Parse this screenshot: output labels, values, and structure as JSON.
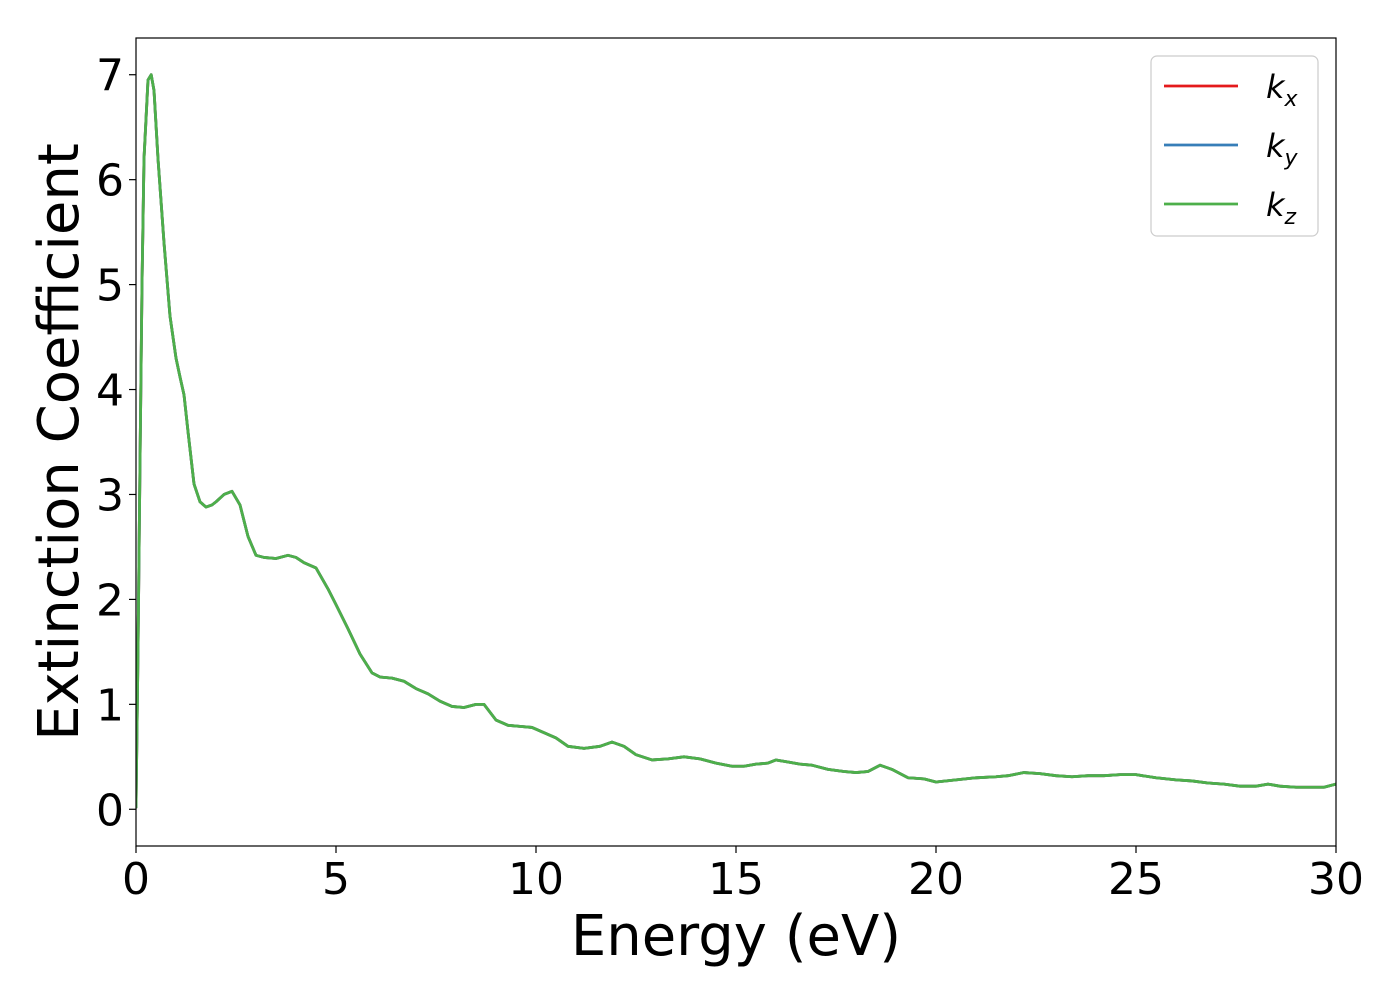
{
  "chart_data": {
    "type": "line",
    "xlabel": "Energy (eV)",
    "ylabel": "Extinction Coefficient",
    "xlim": [
      0,
      30
    ],
    "ylim": [
      -0.35,
      7.35
    ],
    "xticks": [
      0,
      5,
      10,
      15,
      20,
      25,
      30
    ],
    "yticks": [
      0,
      1,
      2,
      3,
      4,
      5,
      6,
      7
    ],
    "grid": false,
    "legend_position": "top-right",
    "series": [
      {
        "name": "k_x",
        "label_base": "k",
        "label_sub": "x",
        "color": "#e41a1c",
        "x": [
          0,
          0.05,
          0.1,
          0.15,
          0.2,
          0.3,
          0.38,
          0.45,
          0.55,
          0.7,
          0.85,
          1.0,
          1.1,
          1.2,
          1.3,
          1.45,
          1.6,
          1.75,
          1.9,
          2.0,
          2.2,
          2.4,
          2.6,
          2.8,
          3.0,
          3.2,
          3.5,
          3.8,
          4.0,
          4.2,
          4.5,
          4.8,
          5.0,
          5.3,
          5.6,
          5.9,
          6.1,
          6.4,
          6.7,
          7.0,
          7.3,
          7.6,
          7.9,
          8.2,
          8.5,
          8.7,
          9.0,
          9.3,
          9.6,
          9.9,
          10.2,
          10.5,
          10.8,
          11.2,
          11.6,
          11.9,
          12.2,
          12.5,
          12.9,
          13.3,
          13.7,
          14.1,
          14.5,
          14.9,
          15.2,
          15.5,
          15.8,
          16.0,
          16.3,
          16.6,
          16.9,
          17.3,
          17.7,
          18.0,
          18.3,
          18.6,
          18.9,
          19.3,
          19.7,
          20.0,
          20.5,
          21.0,
          21.5,
          21.8,
          22.2,
          22.6,
          23.0,
          23.4,
          23.8,
          24.2,
          24.6,
          25.0,
          25.5,
          26.0,
          26.4,
          26.8,
          27.2,
          27.6,
          28.0,
          28.3,
          28.6,
          29.0,
          29.4,
          29.7,
          30.0
        ],
        "y": [
          0.02,
          1.5,
          3.3,
          5.0,
          6.2,
          6.95,
          7.0,
          6.85,
          6.2,
          5.4,
          4.7,
          4.3,
          4.12,
          3.95,
          3.6,
          3.1,
          2.93,
          2.88,
          2.9,
          2.93,
          3.0,
          3.03,
          2.9,
          2.6,
          2.42,
          2.4,
          2.39,
          2.42,
          2.4,
          2.35,
          2.3,
          2.1,
          1.95,
          1.72,
          1.48,
          1.3,
          1.26,
          1.25,
          1.22,
          1.15,
          1.1,
          1.03,
          0.98,
          0.97,
          1.0,
          1.0,
          0.85,
          0.8,
          0.79,
          0.78,
          0.73,
          0.68,
          0.6,
          0.58,
          0.6,
          0.64,
          0.6,
          0.52,
          0.47,
          0.48,
          0.5,
          0.48,
          0.44,
          0.41,
          0.41,
          0.43,
          0.44,
          0.47,
          0.45,
          0.43,
          0.42,
          0.38,
          0.36,
          0.35,
          0.36,
          0.42,
          0.38,
          0.3,
          0.29,
          0.26,
          0.28,
          0.3,
          0.31,
          0.32,
          0.35,
          0.34,
          0.32,
          0.31,
          0.32,
          0.32,
          0.33,
          0.33,
          0.3,
          0.28,
          0.27,
          0.25,
          0.24,
          0.22,
          0.22,
          0.24,
          0.22,
          0.21,
          0.21,
          0.21,
          0.24
        ]
      },
      {
        "name": "k_y",
        "label_base": "k",
        "label_sub": "y",
        "color": "#377eb8",
        "x": [
          0,
          0.05,
          0.1,
          0.15,
          0.2,
          0.3,
          0.38,
          0.45,
          0.55,
          0.7,
          0.85,
          1.0,
          1.1,
          1.2,
          1.3,
          1.45,
          1.6,
          1.75,
          1.9,
          2.0,
          2.2,
          2.4,
          2.6,
          2.8,
          3.0,
          3.2,
          3.5,
          3.8,
          4.0,
          4.2,
          4.5,
          4.8,
          5.0,
          5.3,
          5.6,
          5.9,
          6.1,
          6.4,
          6.7,
          7.0,
          7.3,
          7.6,
          7.9,
          8.2,
          8.5,
          8.7,
          9.0,
          9.3,
          9.6,
          9.9,
          10.2,
          10.5,
          10.8,
          11.2,
          11.6,
          11.9,
          12.2,
          12.5,
          12.9,
          13.3,
          13.7,
          14.1,
          14.5,
          14.9,
          15.2,
          15.5,
          15.8,
          16.0,
          16.3,
          16.6,
          16.9,
          17.3,
          17.7,
          18.0,
          18.3,
          18.6,
          18.9,
          19.3,
          19.7,
          20.0,
          20.5,
          21.0,
          21.5,
          21.8,
          22.2,
          22.6,
          23.0,
          23.4,
          23.8,
          24.2,
          24.6,
          25.0,
          25.5,
          26.0,
          26.4,
          26.8,
          27.2,
          27.6,
          28.0,
          28.3,
          28.6,
          29.0,
          29.4,
          29.7,
          30.0
        ],
        "y": [
          0.02,
          1.5,
          3.3,
          5.0,
          6.2,
          6.95,
          7.0,
          6.85,
          6.2,
          5.4,
          4.7,
          4.3,
          4.12,
          3.95,
          3.6,
          3.1,
          2.93,
          2.88,
          2.9,
          2.93,
          3.0,
          3.03,
          2.9,
          2.6,
          2.42,
          2.4,
          2.39,
          2.42,
          2.4,
          2.35,
          2.3,
          2.1,
          1.95,
          1.72,
          1.48,
          1.3,
          1.26,
          1.25,
          1.22,
          1.15,
          1.1,
          1.03,
          0.98,
          0.97,
          1.0,
          1.0,
          0.85,
          0.8,
          0.79,
          0.78,
          0.73,
          0.68,
          0.6,
          0.58,
          0.6,
          0.64,
          0.6,
          0.52,
          0.47,
          0.48,
          0.5,
          0.48,
          0.44,
          0.41,
          0.41,
          0.43,
          0.44,
          0.47,
          0.45,
          0.43,
          0.42,
          0.38,
          0.36,
          0.35,
          0.36,
          0.42,
          0.38,
          0.3,
          0.29,
          0.26,
          0.28,
          0.3,
          0.31,
          0.32,
          0.35,
          0.34,
          0.32,
          0.31,
          0.32,
          0.32,
          0.33,
          0.33,
          0.3,
          0.28,
          0.27,
          0.25,
          0.24,
          0.22,
          0.22,
          0.24,
          0.22,
          0.21,
          0.21,
          0.21,
          0.24
        ]
      },
      {
        "name": "k_z",
        "label_base": "k",
        "label_sub": "z",
        "color": "#4daf4a",
        "x": [
          0,
          0.05,
          0.1,
          0.15,
          0.2,
          0.3,
          0.38,
          0.45,
          0.55,
          0.7,
          0.85,
          1.0,
          1.1,
          1.2,
          1.3,
          1.45,
          1.6,
          1.75,
          1.9,
          2.0,
          2.2,
          2.4,
          2.6,
          2.8,
          3.0,
          3.2,
          3.5,
          3.8,
          4.0,
          4.2,
          4.5,
          4.8,
          5.0,
          5.3,
          5.6,
          5.9,
          6.1,
          6.4,
          6.7,
          7.0,
          7.3,
          7.6,
          7.9,
          8.2,
          8.5,
          8.7,
          9.0,
          9.3,
          9.6,
          9.9,
          10.2,
          10.5,
          10.8,
          11.2,
          11.6,
          11.9,
          12.2,
          12.5,
          12.9,
          13.3,
          13.7,
          14.1,
          14.5,
          14.9,
          15.2,
          15.5,
          15.8,
          16.0,
          16.3,
          16.6,
          16.9,
          17.3,
          17.7,
          18.0,
          18.3,
          18.6,
          18.9,
          19.3,
          19.7,
          20.0,
          20.5,
          21.0,
          21.5,
          21.8,
          22.2,
          22.6,
          23.0,
          23.4,
          23.8,
          24.2,
          24.6,
          25.0,
          25.5,
          26.0,
          26.4,
          26.8,
          27.2,
          27.6,
          28.0,
          28.3,
          28.6,
          29.0,
          29.4,
          29.7,
          30.0
        ],
        "y": [
          0.02,
          1.5,
          3.3,
          5.0,
          6.2,
          6.95,
          7.0,
          6.85,
          6.2,
          5.4,
          4.7,
          4.3,
          4.12,
          3.95,
          3.6,
          3.1,
          2.93,
          2.88,
          2.9,
          2.93,
          3.0,
          3.03,
          2.9,
          2.6,
          2.42,
          2.4,
          2.39,
          2.42,
          2.4,
          2.35,
          2.3,
          2.1,
          1.95,
          1.72,
          1.48,
          1.3,
          1.26,
          1.25,
          1.22,
          1.15,
          1.1,
          1.03,
          0.98,
          0.97,
          1.0,
          1.0,
          0.85,
          0.8,
          0.79,
          0.78,
          0.73,
          0.68,
          0.6,
          0.58,
          0.6,
          0.64,
          0.6,
          0.52,
          0.47,
          0.48,
          0.5,
          0.48,
          0.44,
          0.41,
          0.41,
          0.43,
          0.44,
          0.47,
          0.45,
          0.43,
          0.42,
          0.38,
          0.36,
          0.35,
          0.36,
          0.42,
          0.38,
          0.3,
          0.29,
          0.26,
          0.28,
          0.3,
          0.31,
          0.32,
          0.35,
          0.34,
          0.32,
          0.31,
          0.32,
          0.32,
          0.33,
          0.33,
          0.3,
          0.28,
          0.27,
          0.25,
          0.24,
          0.22,
          0.22,
          0.24,
          0.22,
          0.21,
          0.21,
          0.21,
          0.24
        ]
      }
    ]
  }
}
